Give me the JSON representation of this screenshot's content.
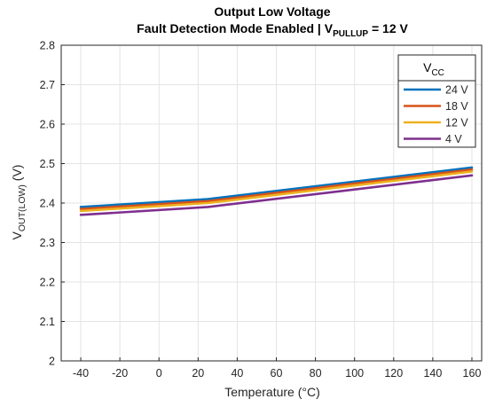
{
  "chart_data": {
    "type": "line",
    "title": "Output Low Voltage",
    "subtitle": {
      "prefix": "Fault Detection Mode Enabled | V",
      "subscript": "PULLUP",
      "suffix": " = 12 V"
    },
    "xlabel": "Temperature (°C)",
    "ylabel": {
      "main": "V",
      "subscript": "OUT(LOW)",
      "suffix": " (V)"
    },
    "xlim": [
      -50,
      165
    ],
    "ylim": [
      2.0,
      2.8
    ],
    "xticks": [
      -40,
      -20,
      0,
      20,
      40,
      60,
      80,
      100,
      120,
      140,
      160
    ],
    "yticks": [
      2,
      2.1,
      2.2,
      2.3,
      2.4,
      2.5,
      2.6,
      2.7,
      2.8
    ],
    "grid": true,
    "legend": {
      "title_main": "V",
      "title_sub": "CC",
      "placement": "top-right"
    },
    "x": [
      -40,
      25,
      160
    ],
    "series": [
      {
        "name": "24 V",
        "color": "#0072BD",
        "values": [
          2.39,
          2.41,
          2.49
        ]
      },
      {
        "name": "18 V",
        "color": "#D95319",
        "values": [
          2.385,
          2.405,
          2.485
        ]
      },
      {
        "name": "12 V",
        "color": "#EDB120",
        "values": [
          2.38,
          2.4,
          2.48
        ]
      },
      {
        "name": "4 V",
        "color": "#7E2F8E",
        "values": [
          2.37,
          2.39,
          2.47
        ]
      }
    ]
  }
}
